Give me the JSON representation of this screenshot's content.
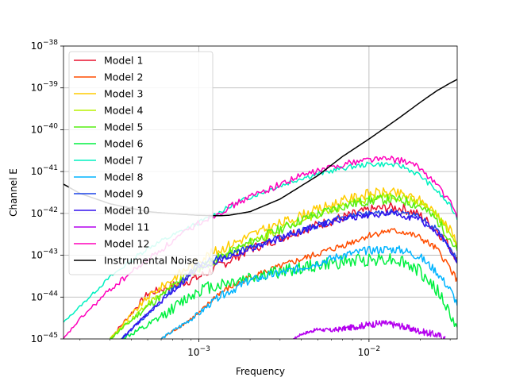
{
  "chart_data": {
    "type": "line",
    "title": "",
    "xlabel": "Frequency",
    "ylabel": "Channel E",
    "xscale": "log",
    "yscale": "log",
    "xlim": [
      0.00016,
      0.033
    ],
    "ylim": [
      1e-45,
      1e-38
    ],
    "grid": true,
    "legend_position": "upper-left",
    "x_ticks": [
      {
        "label_base": "10",
        "label_exp": "−3",
        "value": 0.001
      },
      {
        "label_base": "10",
        "label_exp": "−2",
        "value": 0.01
      }
    ],
    "y_ticks": [
      {
        "label_base": "10",
        "label_exp": "−45",
        "value": 1e-45
      },
      {
        "label_base": "10",
        "label_exp": "−44",
        "value": 1e-44
      },
      {
        "label_base": "10",
        "label_exp": "−43",
        "value": 1e-43
      },
      {
        "label_base": "10",
        "label_exp": "−42",
        "value": 1e-42
      },
      {
        "label_base": "10",
        "label_exp": "−41",
        "value": 1e-41
      },
      {
        "label_base": "10",
        "label_exp": "−40",
        "value": 1e-40
      },
      {
        "label_base": "10",
        "label_exp": "−39",
        "value": 1e-39
      },
      {
        "label_base": "10",
        "label_exp": "−38",
        "value": 1e-38
      }
    ],
    "series": [
      {
        "name": "Model 1",
        "color": "#e8122e",
        "noise": 0.12,
        "x": [
          0.0003,
          0.0005,
          0.001,
          0.002,
          0.004,
          0.007,
          0.01,
          0.013,
          0.016,
          0.02,
          0.025,
          0.03,
          0.033
        ],
        "y": [
          1e-45,
          1.2e-44,
          3e-44,
          1.4e-43,
          4e-43,
          8e-43,
          1.2e-42,
          1.4e-42,
          1.3e-42,
          9e-43,
          4e-43,
          1.6e-43,
          8e-44
        ]
      },
      {
        "name": "Model 2",
        "color": "#ff4d00",
        "noise": 0.08,
        "x": [
          0.0006,
          0.001,
          0.0013,
          0.002,
          0.004,
          0.007,
          0.01,
          0.013,
          0.016,
          0.02,
          0.025,
          0.03,
          0.033
        ],
        "y": [
          1e-45,
          4e-45,
          1.2e-44,
          3e-44,
          8e-44,
          1.7e-43,
          3e-43,
          3.8e-43,
          3.6e-43,
          2.6e-43,
          1.4e-43,
          5e-44,
          2.5e-44
        ]
      },
      {
        "name": "Model 3",
        "color": "#ffcc00",
        "noise": 0.12,
        "x": [
          0.0003,
          0.0005,
          0.001,
          0.002,
          0.004,
          0.007,
          0.01,
          0.013,
          0.016,
          0.02,
          0.025,
          0.03,
          0.033
        ],
        "y": [
          1e-45,
          1e-44,
          8e-44,
          3e-43,
          9e-43,
          2e-42,
          3e-42,
          3.2e-42,
          2.8e-42,
          2e-42,
          1e-42,
          4e-43,
          2e-43
        ]
      },
      {
        "name": "Model 4",
        "color": "#b8f200",
        "noise": 0.1,
        "x": [
          0.0003,
          0.0005,
          0.001,
          0.002,
          0.004,
          0.007,
          0.01,
          0.013,
          0.016,
          0.02,
          0.025,
          0.03,
          0.033
        ],
        "y": [
          1e-45,
          7e-45,
          5e-44,
          2e-43,
          7e-43,
          1.5e-42,
          2.3e-42,
          2.5e-42,
          2.3e-42,
          1.8e-42,
          9e-43,
          3e-43,
          1.5e-43
        ]
      },
      {
        "name": "Model 5",
        "color": "#55ee11",
        "noise": 0.12,
        "x": [
          0.0003,
          0.0005,
          0.001,
          0.002,
          0.004,
          0.007,
          0.01,
          0.013,
          0.016,
          0.02,
          0.025,
          0.03,
          0.033
        ],
        "y": [
          1e-45,
          6e-45,
          5e-44,
          2e-43,
          7e-43,
          1.5e-42,
          2e-42,
          2.2e-42,
          2e-42,
          1.5e-42,
          7e-43,
          2.5e-43,
          1.2e-43
        ]
      },
      {
        "name": "Model 6",
        "color": "#00f040",
        "noise": 0.16,
        "x": [
          0.00035,
          0.0005,
          0.001,
          0.002,
          0.004,
          0.007,
          0.01,
          0.013,
          0.016,
          0.02,
          0.025,
          0.03,
          0.033
        ],
        "y": [
          1e-45,
          2e-45,
          1.5e-44,
          3e-44,
          5e-44,
          7e-44,
          8e-44,
          8.5e-44,
          7e-44,
          4e-44,
          1.5e-44,
          4e-45,
          1.5e-45
        ]
      },
      {
        "name": "Model 7",
        "color": "#00f0c0",
        "noise": 0.06,
        "x": [
          0.00016,
          0.0002,
          0.0003,
          0.0005,
          0.001,
          0.002,
          0.004,
          0.007,
          0.01,
          0.013,
          0.016,
          0.02,
          0.025,
          0.03,
          0.033
        ],
        "y": [
          2.5e-45,
          6e-45,
          3e-44,
          1.5e-43,
          6e-43,
          2.5e-42,
          7e-42,
          1.2e-41,
          1.5e-41,
          1.5e-41,
          1.3e-41,
          8e-42,
          3.5e-42,
          1.5e-42,
          8e-43
        ]
      },
      {
        "name": "Model 8",
        "color": "#00b4ff",
        "noise": 0.1,
        "x": [
          0.0006,
          0.001,
          0.0013,
          0.002,
          0.004,
          0.007,
          0.01,
          0.013,
          0.016,
          0.02,
          0.025,
          0.03,
          0.033
        ],
        "y": [
          1e-45,
          4e-45,
          1e-44,
          2.5e-44,
          5e-44,
          1e-43,
          1.3e-43,
          1.4e-43,
          1.3e-43,
          9e-44,
          4e-44,
          1.5e-44,
          7e-45
        ]
      },
      {
        "name": "Model 9",
        "color": "#1a44e8",
        "noise": 0.08,
        "x": [
          0.00035,
          0.0005,
          0.001,
          0.002,
          0.004,
          0.007,
          0.01,
          0.013,
          0.016,
          0.02,
          0.025,
          0.03,
          0.033
        ],
        "y": [
          1e-45,
          4e-45,
          6e-44,
          1.5e-43,
          4e-43,
          8e-43,
          1e-42,
          1.1e-42,
          1e-42,
          8e-43,
          4e-43,
          1.5e-43,
          7e-44
        ]
      },
      {
        "name": "Model 10",
        "color": "#3311ee",
        "noise": 0.08,
        "x": [
          0.00035,
          0.0005,
          0.001,
          0.002,
          0.004,
          0.007,
          0.01,
          0.013,
          0.016,
          0.02,
          0.025,
          0.03,
          0.033
        ],
        "y": [
          1e-45,
          4e-45,
          5e-44,
          1.4e-43,
          3.8e-43,
          7.5e-43,
          9e-43,
          1e-42,
          9e-43,
          7e-43,
          3.6e-43,
          1.3e-43,
          6e-44
        ]
      },
      {
        "name": "Model 11",
        "color": "#b400ee",
        "noise": 0.08,
        "x": [
          0.0036,
          0.004,
          0.005,
          0.006,
          0.008,
          0.01,
          0.012,
          0.015,
          0.018,
          0.022,
          0.026,
          0.028
        ],
        "y": [
          1e-45,
          1.3e-45,
          1.7e-45,
          1.6e-45,
          1.9e-45,
          2.2e-45,
          2.4e-45,
          2.1e-45,
          1.7e-45,
          1.4e-45,
          1.2e-45,
          1e-45
        ]
      },
      {
        "name": "Model 12",
        "color": "#ff00bb",
        "noise": 0.08,
        "x": [
          0.00016,
          0.0002,
          0.0003,
          0.0005,
          0.001,
          0.002,
          0.004,
          0.007,
          0.01,
          0.013,
          0.016,
          0.02,
          0.025,
          0.03,
          0.033
        ],
        "y": [
          1e-45,
          3e-45,
          1.5e-44,
          8e-44,
          6e-43,
          2.5e-42,
          8e-42,
          1.5e-41,
          2e-41,
          2e-41,
          1.8e-41,
          1.2e-41,
          5e-42,
          1.8e-42,
          9e-43
        ]
      },
      {
        "name": "Instrumental Noise",
        "color": "#000000",
        "noise": 0,
        "x": [
          0.00016,
          0.0002,
          0.0003,
          0.0005,
          0.0008,
          0.001,
          0.0013,
          0.0015,
          0.002,
          0.003,
          0.005,
          0.007,
          0.01,
          0.015,
          0.02,
          0.025,
          0.03,
          0.033
        ],
        "y": [
          5e-42,
          3e-42,
          1.7e-42,
          1.1e-42,
          9.5e-43,
          9e-43,
          8.8e-43,
          9e-43,
          1.1e-42,
          2.2e-42,
          8e-42,
          2.3e-41,
          6e-41,
          1.9e-40,
          4.5e-40,
          8.5e-40,
          1.3e-39,
          1.6e-39
        ]
      }
    ]
  }
}
